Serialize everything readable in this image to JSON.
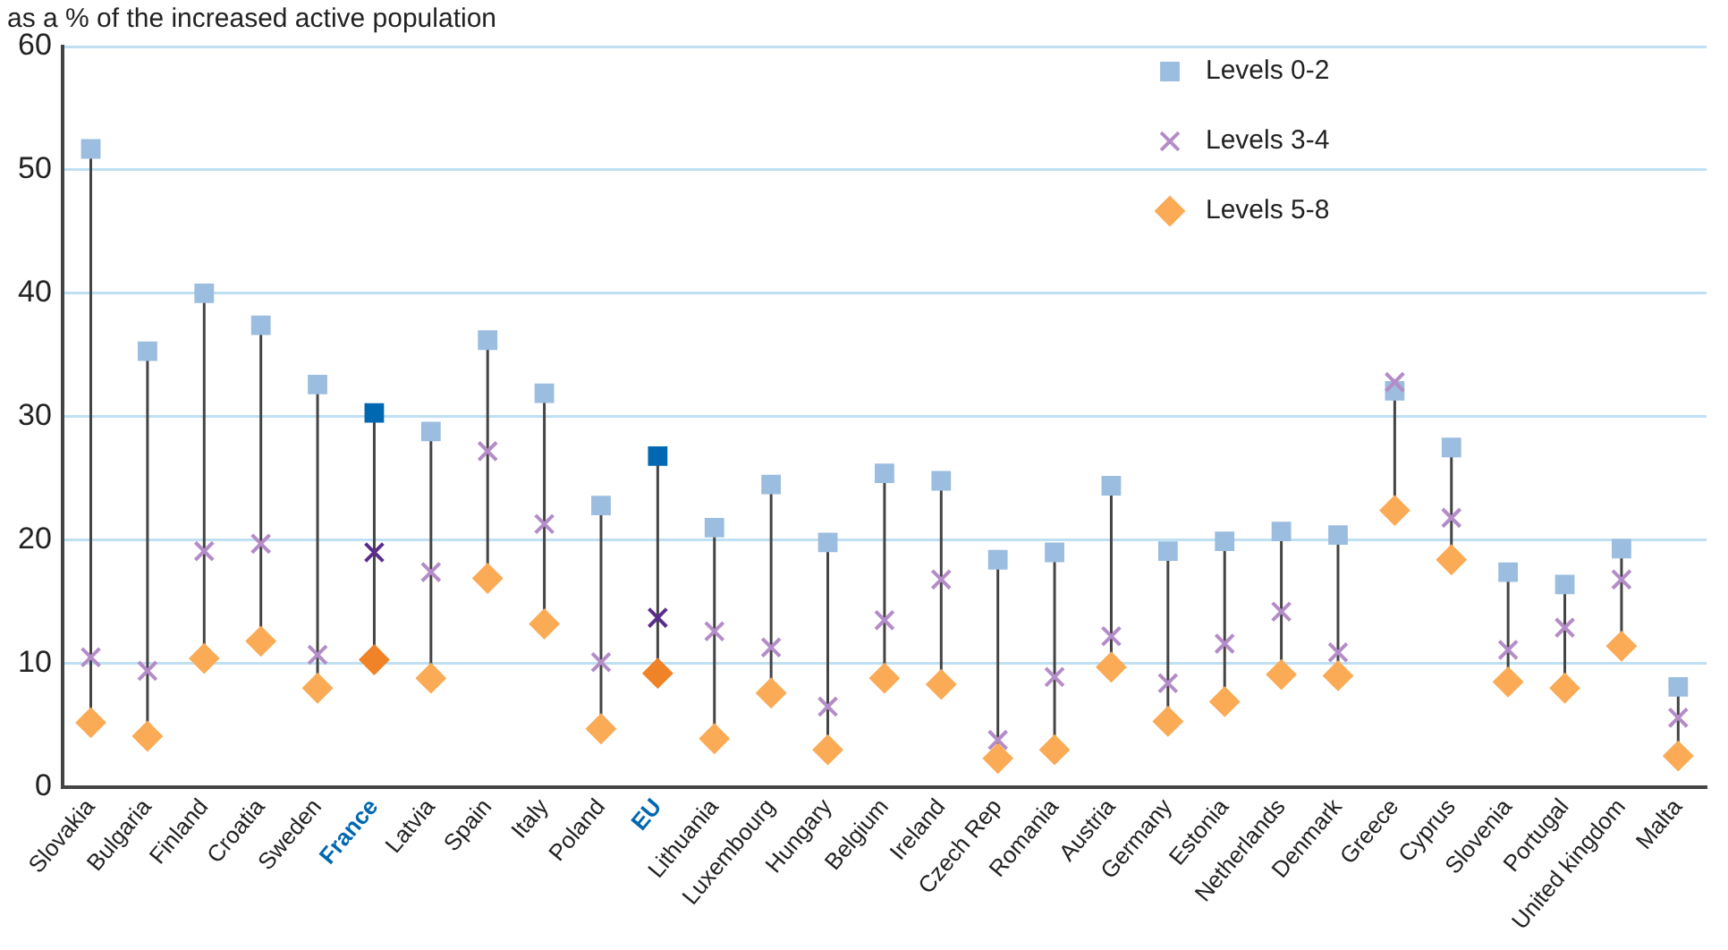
{
  "chart_data": {
    "type": "scatter",
    "ylabel": "as a % of the increased active population",
    "categories": [
      "Slovakia",
      "Bulgaria",
      "Finland",
      "Croatia",
      "Sweden",
      "France",
      "Latvia",
      "Spain",
      "Italy",
      "Poland",
      "EU",
      "Lithuania",
      "Luxembourg",
      "Hungary",
      "Belgium",
      "Ireland",
      "Czech Rep",
      "Romania",
      "Austria",
      "Germany",
      "Estonia",
      "Netherlands",
      "Denmark",
      "Greece",
      "Cyprus",
      "Slovenia",
      "Portugal",
      "United kingdom",
      "Malta"
    ],
    "series": [
      {
        "name": "Levels 0-2",
        "color": "#9bbde0",
        "marker": "square",
        "colors": [
          "#9bbde0",
          "#9bbde0",
          "#9bbde0",
          "#9bbde0",
          "#9bbde0",
          "#0068b0",
          "#9bbde0",
          "#9bbde0",
          "#9bbde0",
          "#9bbde0",
          "#0068b0",
          "#9bbde0",
          "#9bbde0",
          "#9bbde0",
          "#9bbde0",
          "#9bbde0",
          "#9bbde0",
          "#9bbde0",
          "#9bbde0",
          "#9bbde0",
          "#9bbde0",
          "#9bbde0",
          "#9bbde0",
          "#9bbde0",
          "#9bbde0",
          "#9bbde0",
          "#9bbde0",
          "#9bbde0",
          "#9bbde0"
        ],
        "values": [
          51.7,
          35.3,
          40,
          37.4,
          32.6,
          30.3,
          28.8,
          36.2,
          31.9,
          22.8,
          26.8,
          21.0,
          24.5,
          19.8,
          25.4,
          24.8,
          18.4,
          19.0,
          24.4,
          19.1,
          19.9,
          20.7,
          20.4,
          32.1,
          27.5,
          17.4,
          16.4,
          19.3,
          8.1
        ]
      },
      {
        "name": "Levels 3-4",
        "color": "#b48cc8",
        "marker": "cross",
        "colors": [
          "#b48cc8",
          "#b48cc8",
          "#b48cc8",
          "#b48cc8",
          "#b48cc8",
          "#5a2d8c",
          "#b48cc8",
          "#b48cc8",
          "#b48cc8",
          "#b48cc8",
          "#5a2d8c",
          "#b48cc8",
          "#b48cc8",
          "#b48cc8",
          "#b48cc8",
          "#b48cc8",
          "#b48cc8",
          "#b48cc8",
          "#b48cc8",
          "#b48cc8",
          "#b48cc8",
          "#b48cc8",
          "#b48cc8",
          "#b48cc8",
          "#b48cc8",
          "#b48cc8",
          "#b48cc8",
          "#b48cc8",
          "#b48cc8"
        ],
        "values": [
          10.5,
          9.4,
          19.1,
          19.7,
          10.7,
          19.0,
          17.4,
          27.2,
          21.3,
          10.1,
          13.7,
          12.6,
          11.3,
          6.5,
          13.5,
          16.8,
          3.8,
          8.9,
          12.2,
          8.4,
          11.6,
          14.2,
          10.9,
          32.8,
          21.8,
          11.1,
          12.9,
          16.8,
          5.6
        ]
      },
      {
        "name": "Levels 5-8",
        "color": "#fbab55",
        "marker": "diamond",
        "colors": [
          "#fbab55",
          "#fbab55",
          "#fbab55",
          "#fbab55",
          "#fbab55",
          "#f08228",
          "#fbab55",
          "#fbab55",
          "#fbab55",
          "#fbab55",
          "#f08228",
          "#fbab55",
          "#fbab55",
          "#fbab55",
          "#fbab55",
          "#fbab55",
          "#fbab55",
          "#fbab55",
          "#fbab55",
          "#fbab55",
          "#fbab55",
          "#fbab55",
          "#fbab55",
          "#fbab55",
          "#fbab55",
          "#fbab55",
          "#fbab55",
          "#fbab55",
          "#fbab55"
        ],
        "values": [
          5.2,
          4.1,
          10.4,
          11.8,
          8.0,
          10.3,
          8.8,
          16.9,
          13.2,
          4.7,
          9.2,
          3.9,
          7.6,
          3.0,
          8.8,
          8.3,
          2.3,
          3.0,
          9.7,
          5.3,
          6.9,
          9.1,
          9.0,
          22.4,
          18.4,
          8.5,
          8.0,
          11.4,
          2.5
        ]
      }
    ],
    "ylim": [
      0,
      60
    ],
    "yticks": [
      0,
      10,
      20,
      30,
      40,
      50,
      60
    ],
    "grid": "y",
    "legend": "top right"
  }
}
